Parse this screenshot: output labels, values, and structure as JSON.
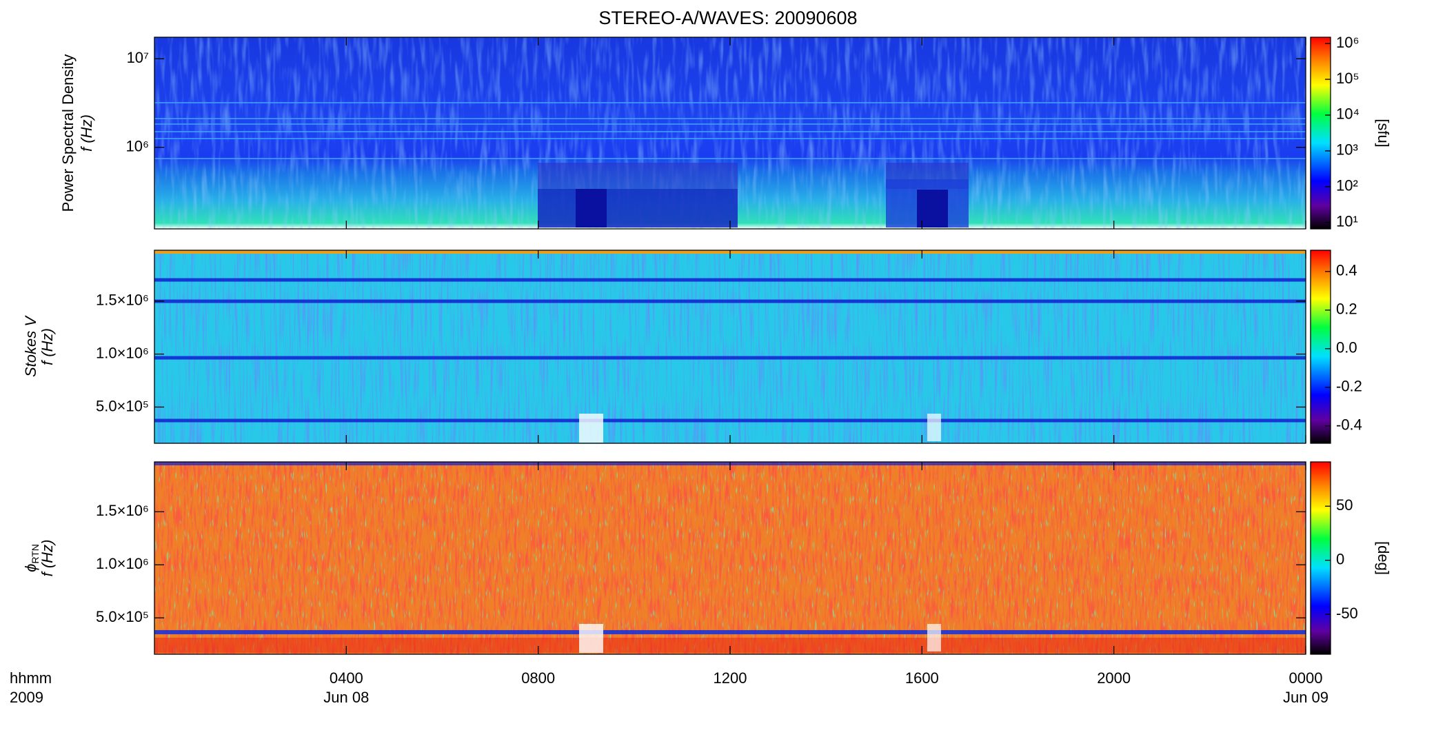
{
  "chart_data": [
    {
      "type": "heatmap",
      "title": "STEREO-A/WAVES: 20090608",
      "ylabel": "Power Spectral Density",
      "ylabel2": "f (Hz)",
      "yscale": "log",
      "ylim": [
        120000,
        17500000
      ],
      "yticks": [
        {
          "value": 1000000,
          "label": "10⁶"
        },
        {
          "value": 10000000,
          "label": "10⁷"
        }
      ],
      "zscale": "log",
      "zlim": [
        6.6,
        1500000
      ],
      "zticks": [
        {
          "value": 10,
          "label": "10¹"
        },
        {
          "value": 100,
          "label": "10²"
        },
        {
          "value": 1000,
          "label": "10³"
        },
        {
          "value": 10000,
          "label": "10⁴"
        },
        {
          "value": 100000,
          "label": "10⁵"
        },
        {
          "value": 1000000,
          "label": "10⁶"
        }
      ],
      "zlabel": "[sfu]"
    },
    {
      "type": "heatmap",
      "ylabel": "Stokes V",
      "ylabel2": "f (Hz)",
      "yscale": "linear",
      "ylim": [
        158000,
        1980000
      ],
      "yticks": [
        {
          "value": 500000,
          "label": "5.0×10⁵"
        },
        {
          "value": 1000000,
          "label": "1.0×10⁶"
        },
        {
          "value": 1500000,
          "label": "1.5×10⁶"
        }
      ],
      "zscale": "linear",
      "zlim": [
        -0.49,
        0.51
      ],
      "zticks": [
        {
          "value": -0.4,
          "label": "-0.4"
        },
        {
          "value": -0.2,
          "label": "-0.2"
        },
        {
          "value": 0,
          "label": "0.0"
        },
        {
          "value": 0.2,
          "label": "0.2"
        },
        {
          "value": 0.4,
          "label": "0.4"
        }
      ]
    },
    {
      "type": "heatmap",
      "ylabel": "ϕ",
      "ylabel_subscript": "RTN",
      "ylabel2": "f (Hz)",
      "yscale": "linear",
      "ylim": [
        157000,
        1970000
      ],
      "yticks": [
        {
          "value": 500000,
          "label": "5.0×10⁵"
        },
        {
          "value": 1000000,
          "label": "1.0×10⁶"
        },
        {
          "value": 1500000,
          "label": "1.5×10⁶"
        }
      ],
      "zscale": "linear",
      "zlim": [
        -87,
        91
      ],
      "zticks": [
        -50,
        0,
        50
      ],
      "zlabel": "[deg]",
      "xlabel": "hhmm",
      "xlabel2": "2009",
      "xlim": [
        0,
        24
      ],
      "xticks": [
        {
          "value": 4,
          "label": "0400"
        },
        {
          "value": 8,
          "label": "0800"
        },
        {
          "value": 12,
          "label": "1200"
        },
        {
          "value": 16,
          "label": "1600"
        },
        {
          "value": 20,
          "label": "2000"
        },
        {
          "value": 24,
          "label": "0000"
        }
      ],
      "date_labels": [
        {
          "value": 4,
          "label": "Jun 08"
        },
        {
          "value": 24,
          "label": "Jun 09"
        }
      ]
    }
  ]
}
